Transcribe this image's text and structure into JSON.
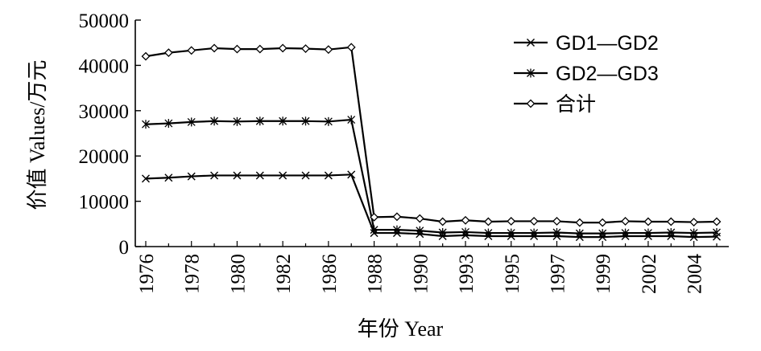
{
  "chart_data": {
    "type": "line",
    "xlabel": "年份 Year",
    "ylabel": "价值 Values/万元",
    "ylim": [
      0,
      50000
    ],
    "yticks": [
      0,
      10000,
      20000,
      30000,
      40000,
      50000
    ],
    "x_tick_labels": [
      "1976",
      "1978",
      "1980",
      "1982",
      "1986",
      "1988",
      "1990",
      "1993",
      "1995",
      "1997",
      "1999",
      "2002",
      "2004"
    ],
    "x_tick_positions": [
      0,
      2,
      4,
      6,
      8,
      10,
      12,
      14,
      16,
      18,
      20,
      22,
      24
    ],
    "x": [
      0,
      1,
      2,
      3,
      4,
      5,
      6,
      7,
      8,
      9,
      10,
      11,
      12,
      13,
      14,
      15,
      16,
      17,
      18,
      19,
      20,
      21,
      22,
      23,
      24,
      25
    ],
    "grid": false,
    "legend_position": "top-right",
    "series": [
      {
        "name": "GD1—GD2",
        "marker": "x",
        "values": [
          15000,
          15200,
          15500,
          15700,
          15700,
          15700,
          15700,
          15700,
          15700,
          15900,
          3000,
          3000,
          2800,
          2300,
          2500,
          2300,
          2300,
          2300,
          2300,
          2100,
          2100,
          2300,
          2300,
          2300,
          2100,
          2200
        ]
      },
      {
        "name": "GD2—GD3",
        "marker": "asterisk",
        "values": [
          27000,
          27200,
          27500,
          27700,
          27600,
          27700,
          27700,
          27700,
          27600,
          28000,
          3700,
          3700,
          3500,
          3100,
          3200,
          3000,
          3000,
          3000,
          3100,
          2900,
          2900,
          3000,
          3000,
          3100,
          3000,
          3100
        ]
      },
      {
        "name": "合计",
        "marker": "diamond",
        "values": [
          42000,
          42800,
          43300,
          43800,
          43600,
          43600,
          43800,
          43700,
          43500,
          44000,
          6500,
          6600,
          6200,
          5500,
          5800,
          5500,
          5600,
          5600,
          5600,
          5300,
          5300,
          5600,
          5500,
          5500,
          5400,
          5500
        ]
      }
    ]
  }
}
